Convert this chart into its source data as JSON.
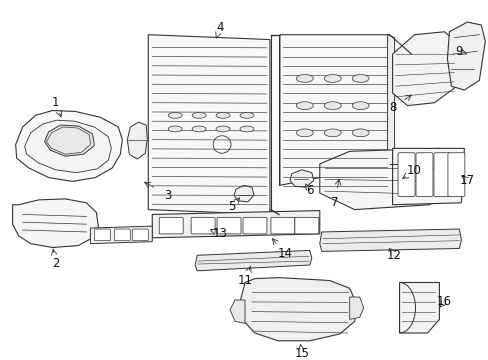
{
  "background_color": "#ffffff",
  "line_color": "#333333",
  "lw": 0.7,
  "label_fontsize": 8.5,
  "fig_w": 4.89,
  "fig_h": 3.6,
  "dpi": 100
}
